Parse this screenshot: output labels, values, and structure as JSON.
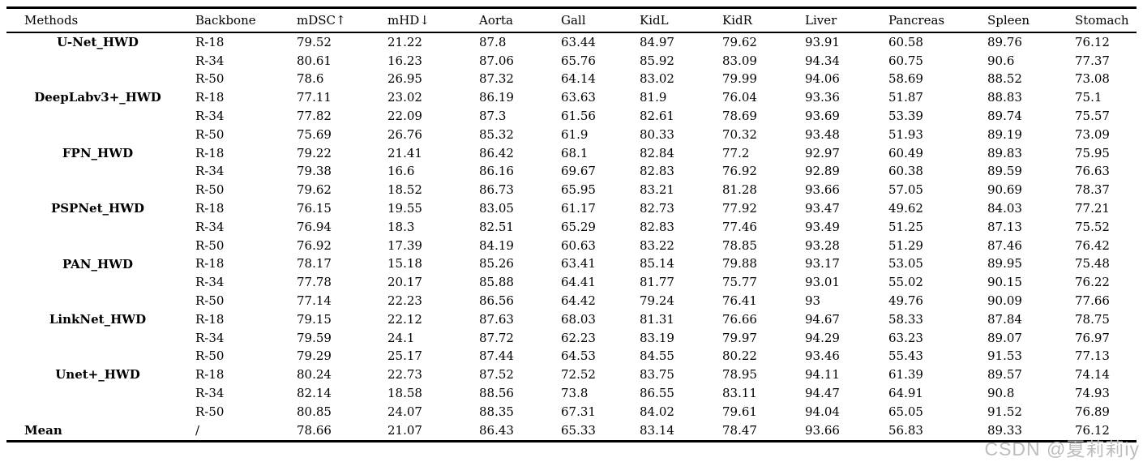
{
  "watermark": "CSDN @夏莉莉iy",
  "table": {
    "columns": [
      "Methods",
      "Backbone",
      "mDSC↑",
      "mHD↓",
      "Aorta",
      "Gall",
      "KidL",
      "KidR",
      "Liver",
      "Pancreas",
      "Spleen",
      "Stomach"
    ],
    "groups": [
      {
        "method": "U-Net_HWD",
        "rows": [
          {
            "backbone": "R-18",
            "values": [
              "79.52",
              "21.22",
              "87.8",
              "63.44",
              "84.97",
              "79.62",
              "93.91",
              "60.58",
              "89.76",
              "76.12"
            ]
          },
          {
            "backbone": "R-34",
            "values": [
              "80.61",
              "16.23",
              "87.06",
              "65.76",
              "85.92",
              "83.09",
              "94.34",
              "60.75",
              "90.6",
              "77.37"
            ]
          },
          {
            "backbone": "R-50",
            "values": [
              "78.6",
              "26.95",
              "87.32",
              "64.14",
              "83.02",
              "79.99",
              "94.06",
              "58.69",
              "88.52",
              "73.08"
            ]
          }
        ]
      },
      {
        "method": "DeepLabv3+_HWD",
        "rows": [
          {
            "backbone": "R-18",
            "values": [
              "77.11",
              "23.02",
              "86.19",
              "63.63",
              "81.9",
              "76.04",
              "93.36",
              "51.87",
              "88.83",
              "75.1"
            ]
          },
          {
            "backbone": "R-34",
            "values": [
              "77.82",
              "22.09",
              "87.3",
              "61.56",
              "82.61",
              "78.69",
              "93.69",
              "53.39",
              "89.74",
              "75.57"
            ]
          },
          {
            "backbone": "R-50",
            "values": [
              "75.69",
              "26.76",
              "85.32",
              "61.9",
              "80.33",
              "70.32",
              "93.48",
              "51.93",
              "89.19",
              "73.09"
            ]
          }
        ]
      },
      {
        "method": "FPN_HWD",
        "rows": [
          {
            "backbone": "R-18",
            "values": [
              "79.22",
              "21.41",
              "86.42",
              "68.1",
              "82.84",
              "77.2",
              "92.97",
              "60.49",
              "89.83",
              "75.95"
            ]
          },
          {
            "backbone": "R-34",
            "values": [
              "79.38",
              "16.6",
              "86.16",
              "69.67",
              "82.83",
              "76.92",
              "92.89",
              "60.38",
              "89.59",
              "76.63"
            ]
          },
          {
            "backbone": "R-50",
            "values": [
              "79.62",
              "18.52",
              "86.73",
              "65.95",
              "83.21",
              "81.28",
              "93.66",
              "57.05",
              "90.69",
              "78.37"
            ]
          }
        ]
      },
      {
        "method": "PSPNet_HWD",
        "rows": [
          {
            "backbone": "R-18",
            "values": [
              "76.15",
              "19.55",
              "83.05",
              "61.17",
              "82.73",
              "77.92",
              "93.47",
              "49.62",
              "84.03",
              "77.21"
            ]
          },
          {
            "backbone": "R-34",
            "values": [
              "76.94",
              "18.3",
              "82.51",
              "65.29",
              "82.83",
              "77.46",
              "93.49",
              "51.25",
              "87.13",
              "75.52"
            ]
          },
          {
            "backbone": "R-50",
            "values": [
              "76.92",
              "17.39",
              "84.19",
              "60.63",
              "83.22",
              "78.85",
              "93.28",
              "51.29",
              "87.46",
              "76.42"
            ]
          }
        ]
      },
      {
        "method": "PAN_HWD",
        "rows": [
          {
            "backbone": "R-18",
            "values": [
              "78.17",
              "15.18",
              "85.26",
              "63.41",
              "85.14",
              "79.88",
              "93.17",
              "53.05",
              "89.95",
              "75.48"
            ]
          },
          {
            "backbone": "R-34",
            "values": [
              "77.78",
              "20.17",
              "85.88",
              "64.41",
              "81.77",
              "75.77",
              "93.01",
              "55.02",
              "90.15",
              "76.22"
            ]
          },
          {
            "backbone": "R-50",
            "values": [
              "77.14",
              "22.23",
              "86.56",
              "64.42",
              "79.24",
              "76.41",
              "93",
              "49.76",
              "90.09",
              "77.66"
            ]
          }
        ]
      },
      {
        "method": "LinkNet_HWD",
        "rows": [
          {
            "backbone": "R-18",
            "values": [
              "79.15",
              "22.12",
              "87.63",
              "68.03",
              "81.31",
              "76.66",
              "94.67",
              "58.33",
              "87.84",
              "78.75"
            ]
          },
          {
            "backbone": "R-34",
            "values": [
              "79.59",
              "24.1",
              "87.72",
              "62.23",
              "83.19",
              "79.97",
              "94.29",
              "63.23",
              "89.07",
              "76.97"
            ]
          },
          {
            "backbone": "R-50",
            "values": [
              "79.29",
              "25.17",
              "87.44",
              "64.53",
              "84.55",
              "80.22",
              "93.46",
              "55.43",
              "91.53",
              "77.13"
            ]
          }
        ]
      },
      {
        "method": "Unet+_HWD",
        "rows": [
          {
            "backbone": "R-18",
            "values": [
              "80.24",
              "22.73",
              "87.52",
              "72.52",
              "83.75",
              "78.95",
              "94.11",
              "61.39",
              "89.57",
              "74.14"
            ]
          },
          {
            "backbone": "R-34",
            "values": [
              "82.14",
              "18.58",
              "88.56",
              "73.8",
              "86.55",
              "83.11",
              "94.47",
              "64.91",
              "90.8",
              "74.93"
            ]
          },
          {
            "backbone": "R-50",
            "values": [
              "80.85",
              "24.07",
              "88.35",
              "67.31",
              "84.02",
              "79.61",
              "94.04",
              "65.05",
              "91.52",
              "76.89"
            ]
          }
        ]
      }
    ],
    "mean_row": {
      "method": "Mean",
      "backbone": "/",
      "values": [
        "78.66",
        "21.07",
        "86.43",
        "65.33",
        "83.14",
        "78.47",
        "93.66",
        "56.83",
        "89.33",
        "76.12"
      ]
    }
  }
}
